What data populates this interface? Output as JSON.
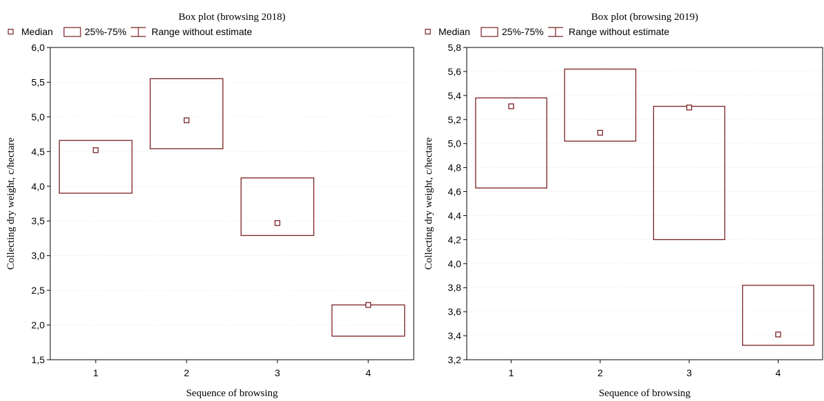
{
  "chart_data": [
    {
      "type": "box",
      "title": "Box plot (browsing 2018)",
      "xlabel": "Sequence of browsing",
      "ylabel": "Collecting dry weight, c/hectare",
      "categories": [
        "1",
        "2",
        "3",
        "4"
      ],
      "ylim": [
        1.5,
        6.0
      ],
      "yticks": [
        "1,5",
        "2,0",
        "2,5",
        "3,0",
        "3,5",
        "4,0",
        "4,5",
        "5,0",
        "5,5",
        "6,0"
      ],
      "ytick_values": [
        1.5,
        2.0,
        2.5,
        3.0,
        3.5,
        4.0,
        4.5,
        5.0,
        5.5,
        6.0
      ],
      "legend": {
        "median": "Median",
        "box": "25%-75%",
        "range": "Range without estimate",
        "placement": "top-left"
      },
      "median": [
        4.52,
        4.95,
        3.47,
        2.29
      ],
      "q1": [
        3.9,
        4.54,
        3.29,
        1.84
      ],
      "q3": [
        4.66,
        5.55,
        4.12,
        2.29
      ],
      "color": "#7b2020"
    },
    {
      "type": "box",
      "title": "Box plot (browsing 2019)",
      "xlabel": "Sequence of browsing",
      "ylabel": "Collecting dry weight, c/hectare",
      "categories": [
        "1",
        "2",
        "3",
        "4"
      ],
      "ylim": [
        3.2,
        5.8
      ],
      "yticks": [
        "3,2",
        "3,4",
        "3,6",
        "3,8",
        "4,0",
        "4,2",
        "4,4",
        "4,6",
        "4,8",
        "5,0",
        "5,2",
        "5,4",
        "5,6",
        "5,8"
      ],
      "ytick_values": [
        3.2,
        3.4,
        3.6,
        3.8,
        4.0,
        4.2,
        4.4,
        4.6,
        4.8,
        5.0,
        5.2,
        5.4,
        5.6,
        5.8
      ],
      "legend": {
        "median": "Median",
        "box": "25%-75%",
        "range": "Range without estimate",
        "placement": "top-left"
      },
      "median": [
        5.31,
        5.09,
        5.3,
        3.41
      ],
      "q1": [
        4.63,
        5.02,
        4.2,
        3.32
      ],
      "q3": [
        5.38,
        5.62,
        5.31,
        3.82
      ],
      "color": "#7b2020"
    }
  ]
}
